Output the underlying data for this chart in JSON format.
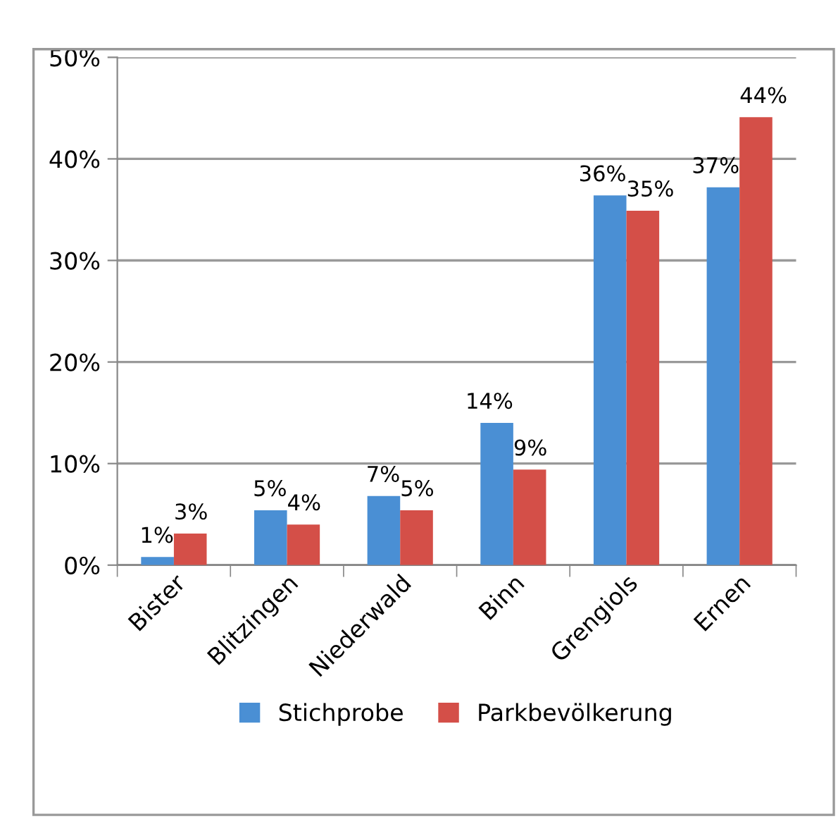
{
  "chart_data": {
    "type": "bar",
    "categories": [
      "Bister",
      "Blitzingen",
      "Niederwald",
      "Binn",
      "Grengiols",
      "Ernen"
    ],
    "series": [
      {
        "name": "Stichprobe",
        "color": "#4a8fd4",
        "values": [
          0.8,
          5.4,
          6.8,
          14.0,
          36.4,
          37.2
        ],
        "value_labels": [
          "1%",
          "5%",
          "7%",
          "14%",
          "36%",
          "37%"
        ]
      },
      {
        "name": "Parkbevölkerung",
        "color": "#d44f48",
        "values": [
          3.1,
          4.0,
          5.4,
          9.4,
          34.9,
          44.1
        ],
        "value_labels": [
          "3%",
          "4%",
          "5%",
          "9%",
          "35%",
          "44%"
        ]
      }
    ],
    "ylim": [
      0,
      50
    ],
    "yticks": [
      {
        "value": 0,
        "label": "0%"
      },
      {
        "value": 10,
        "label": "10%"
      },
      {
        "value": 20,
        "label": "20%"
      },
      {
        "value": 30,
        "label": "30%"
      },
      {
        "value": 40,
        "label": "40%"
      },
      {
        "value": 50,
        "label": "50%"
      }
    ],
    "grid": "y",
    "legend": "bottom"
  }
}
